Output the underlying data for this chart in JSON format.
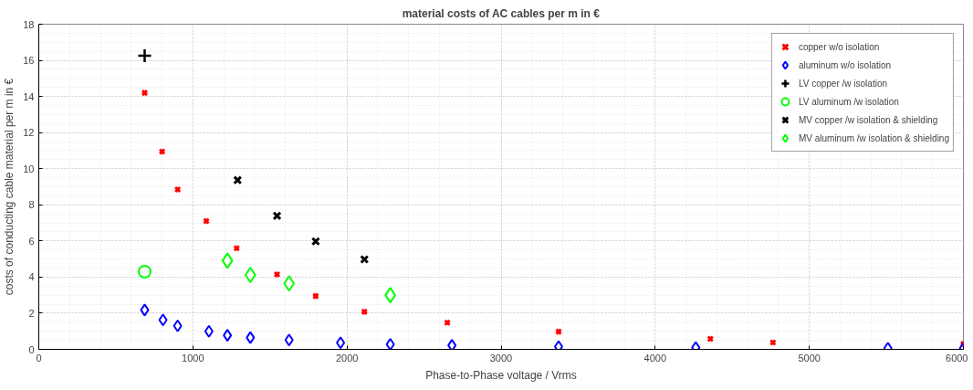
{
  "chart_data": {
    "type": "scatter",
    "title": "material costs of AC cables per m in €",
    "xlabel": "Phase-to-Phase voltage / Vrms",
    "ylabel": "costs of conducting cable material per m in €",
    "xlim": [
      0,
      6000
    ],
    "ylim": [
      0,
      18
    ],
    "xticks": [
      0,
      1000,
      2000,
      3000,
      4000,
      5000,
      6000
    ],
    "yticks": [
      0,
      2,
      4,
      6,
      8,
      10,
      12,
      14,
      16,
      18
    ],
    "grid": true,
    "legend": "top right",
    "series": [
      {
        "name": "copper w/o isolation",
        "color": "#ff0000",
        "marker": "cross",
        "x": [
          687,
          800,
          901,
          1087,
          1284,
          1546,
          1797,
          2113,
          2651,
          3373,
          4358,
          4764,
          6000
        ],
        "values": [
          14.2,
          10.95,
          8.85,
          7.1,
          5.6,
          4.15,
          2.95,
          2.08,
          1.48,
          0.98,
          0.58,
          0.38,
          0.3
        ]
      },
      {
        "name": "aluminum w/o isolation",
        "color": "#0000ff",
        "marker": "diamond",
        "x": [
          687,
          806,
          901,
          1104,
          1224,
          1373,
          1624,
          1958,
          2281,
          2681,
          3373,
          4263,
          5510,
          6000
        ],
        "values": [
          2.18,
          1.63,
          1.3,
          1.0,
          0.78,
          0.65,
          0.52,
          0.37,
          0.28,
          0.22,
          0.15,
          0.1,
          0.06,
          0.05
        ]
      },
      {
        "name": "LV copper /w isolation",
        "color": "#000000",
        "marker": "plus",
        "x": [
          687
        ],
        "values": [
          16.25
        ]
      },
      {
        "name": "LV aluminum /w isolation",
        "color": "#00ff00",
        "marker": "circle",
        "x": [
          687
        ],
        "values": [
          4.3
        ]
      },
      {
        "name": "MV copper /w isolation & shielding",
        "color": "#000000",
        "marker": "cross",
        "x": [
          1290,
          1546,
          1797,
          2113
        ],
        "values": [
          9.37,
          7.39,
          5.98,
          4.98
        ]
      },
      {
        "name": "MV aluminum /w isolation & shielding",
        "color": "#00ff00",
        "marker": "diamond",
        "x": [
          1224,
          1373,
          1624,
          2281
        ],
        "values": [
          4.91,
          4.12,
          3.65,
          3.0
        ]
      }
    ]
  }
}
